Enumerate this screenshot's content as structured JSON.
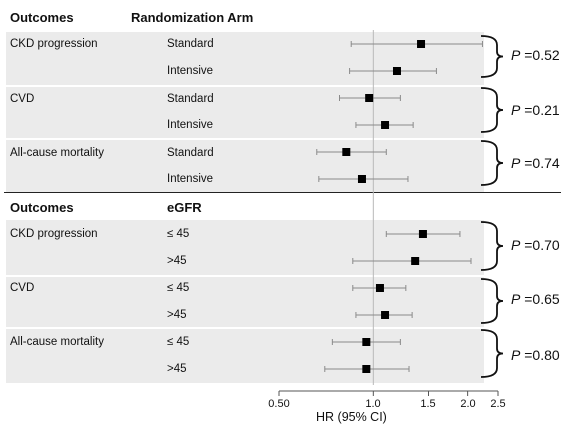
{
  "headers": {
    "top_outcomes": "Outcomes",
    "top_group": "Randomization Arm",
    "bottom_outcomes": "Outcomes",
    "bottom_group": "eGFR"
  },
  "chart_data": {
    "type": "forest",
    "xlabel": "HR (95% CI)",
    "xscale": "log",
    "xlim": [
      0.5,
      2.5
    ],
    "xticks": [
      "0.50",
      "1.0",
      "1.5",
      "2.0",
      "2.5"
    ],
    "reference_line": 1.0,
    "panels": [
      {
        "outcome_header": "Outcomes",
        "group_header": "Randomization Arm",
        "groups": [
          {
            "outcome": "CKD progression",
            "p_value": "0.52",
            "rows": [
              {
                "label": "Standard",
                "hr": 1.42,
                "lo": 0.85,
                "hi": 2.23
              },
              {
                "label": "Intensive",
                "hr": 1.19,
                "lo": 0.84,
                "hi": 1.59
              }
            ]
          },
          {
            "outcome": "CVD",
            "p_value": "0.21",
            "rows": [
              {
                "label": "Standard",
                "hr": 0.97,
                "lo": 0.78,
                "hi": 1.22
              },
              {
                "label": "Intensive",
                "hr": 1.09,
                "lo": 0.88,
                "hi": 1.34
              }
            ]
          },
          {
            "outcome": "All-cause mortality",
            "p_value": "0.74",
            "rows": [
              {
                "label": "Standard",
                "hr": 0.82,
                "lo": 0.66,
                "hi": 1.1
              },
              {
                "label": "Intensive",
                "hr": 0.92,
                "lo": 0.67,
                "hi": 1.29
              }
            ]
          }
        ]
      },
      {
        "outcome_header": "Outcomes",
        "group_header": "eGFR",
        "groups": [
          {
            "outcome": "CKD progression",
            "p_value": "0.70",
            "rows": [
              {
                "label": "≤ 45",
                "hr": 1.44,
                "lo": 1.1,
                "hi": 1.89
              },
              {
                "label": ">45",
                "hr": 1.36,
                "lo": 0.86,
                "hi": 2.05
              }
            ]
          },
          {
            "outcome": "CVD",
            "p_value": "0.65",
            "rows": [
              {
                "label": "≤ 45",
                "hr": 1.05,
                "lo": 0.86,
                "hi": 1.27
              },
              {
                "label": ">45",
                "hr": 1.09,
                "lo": 0.88,
                "hi": 1.33
              }
            ]
          },
          {
            "outcome": "All-cause mortality",
            "p_value": "0.80",
            "rows": [
              {
                "label": "≤ 45",
                "hr": 0.95,
                "lo": 0.74,
                "hi": 1.22
              },
              {
                "label": ">45",
                "hr": 0.95,
                "lo": 0.7,
                "hi": 1.3
              }
            ]
          }
        ]
      }
    ]
  }
}
